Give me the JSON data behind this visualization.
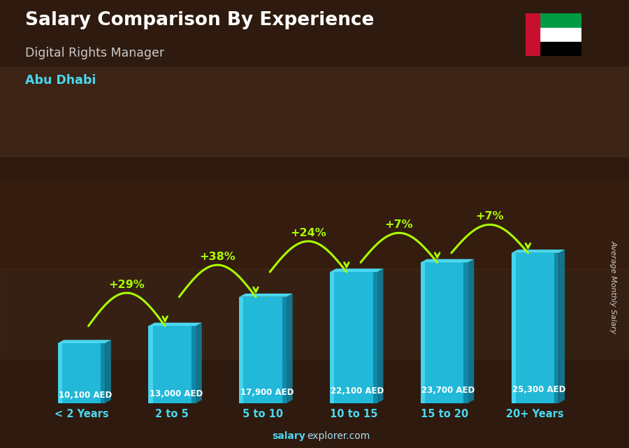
{
  "title": "Salary Comparison By Experience",
  "subtitle": "Digital Rights Manager",
  "city": "Abu Dhabi",
  "ylabel": "Average Monthly Salary",
  "watermark": "salaryexplorer.com",
  "categories": [
    "< 2 Years",
    "2 to 5",
    "5 to 10",
    "10 to 15",
    "15 to 20",
    "20+ Years"
  ],
  "values": [
    10100,
    13000,
    17900,
    22100,
    23700,
    25300
  ],
  "value_labels": [
    "10,100 AED",
    "13,000 AED",
    "17,900 AED",
    "22,100 AED",
    "23,700 AED",
    "25,300 AED"
  ],
  "pct_changes": [
    "+29%",
    "+38%",
    "+24%",
    "+7%",
    "+7%"
  ],
  "bar_color_top": "#4ad8f0",
  "bar_color_mid": "#22b8d8",
  "bar_color_side": "#0d8aaa",
  "bg_color": "#2e1a0e",
  "title_color": "#ffffff",
  "subtitle_color": "#cccccc",
  "city_color": "#4ad8f0",
  "label_color": "#ffffff",
  "pct_color": "#aaff00",
  "tick_color": "#4ad8f0",
  "watermark_bold_color": "#4ad8f0",
  "watermark_normal_color": "#aaddee",
  "ylabel_color": "#cccccc",
  "figsize": [
    9.0,
    6.41
  ],
  "dpi": 100
}
